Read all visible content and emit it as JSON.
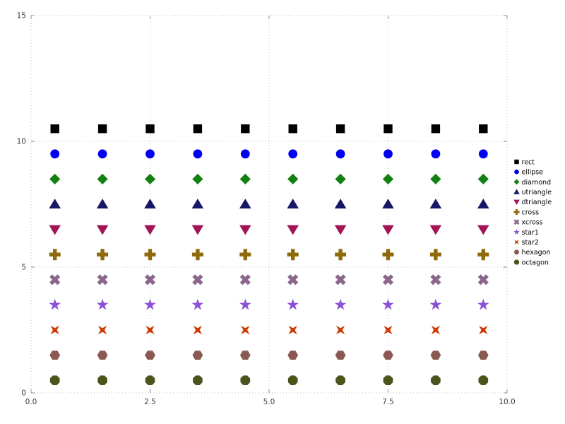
{
  "chart_data": {
    "type": "scatter",
    "title": "",
    "xlabel": "",
    "ylabel": "",
    "xlim": [
      0,
      10
    ],
    "ylim": [
      0,
      15
    ],
    "xticks": [
      0,
      2.5,
      5,
      7.5,
      10
    ],
    "xtick_labels": [
      "0.0",
      "2.5",
      "5.0",
      "7.5",
      "10.0"
    ],
    "yticks": [
      0,
      5,
      10,
      15
    ],
    "ytick_labels": [
      "0",
      "5",
      "10",
      "15"
    ],
    "grid": true,
    "legend_position": "right-outside",
    "x": [
      0.5,
      1.5,
      2.5,
      3.5,
      4.5,
      5.5,
      6.5,
      7.5,
      8.5,
      9.5
    ],
    "series": [
      {
        "name": "rect",
        "marker": "rect",
        "color": "#000000",
        "y": 10.5
      },
      {
        "name": "ellipse",
        "marker": "ellipse",
        "color": "#0000f0",
        "y": 9.5
      },
      {
        "name": "diamond",
        "marker": "diamond",
        "color": "#128012",
        "y": 8.5
      },
      {
        "name": "utriangle",
        "marker": "utriangle",
        "color": "#171768",
        "y": 7.5
      },
      {
        "name": "dtriangle",
        "marker": "dtriangle",
        "color": "#a31456",
        "y": 6.5
      },
      {
        "name": "cross",
        "marker": "cross",
        "color": "#8f6a0c",
        "y": 5.5
      },
      {
        "name": "xcross",
        "marker": "xcross",
        "color": "#8b668b",
        "y": 4.5
      },
      {
        "name": "star1",
        "marker": "star1",
        "color": "#8c4fd8",
        "y": 3.5
      },
      {
        "name": "star2",
        "marker": "star2",
        "color": "#cc3a05",
        "y": 2.5
      },
      {
        "name": "hexagon",
        "marker": "hexagon",
        "color": "#8a5a50",
        "y": 1.5
      },
      {
        "name": "octagon",
        "marker": "octagon",
        "color": "#49551c",
        "y": 0.5
      }
    ],
    "legend_entries": [
      "rect",
      "ellipse",
      "diamond",
      "utriangle",
      "dtriangle",
      "cross",
      "xcross",
      "star1",
      "star2",
      "hexagon",
      "octagon"
    ]
  }
}
